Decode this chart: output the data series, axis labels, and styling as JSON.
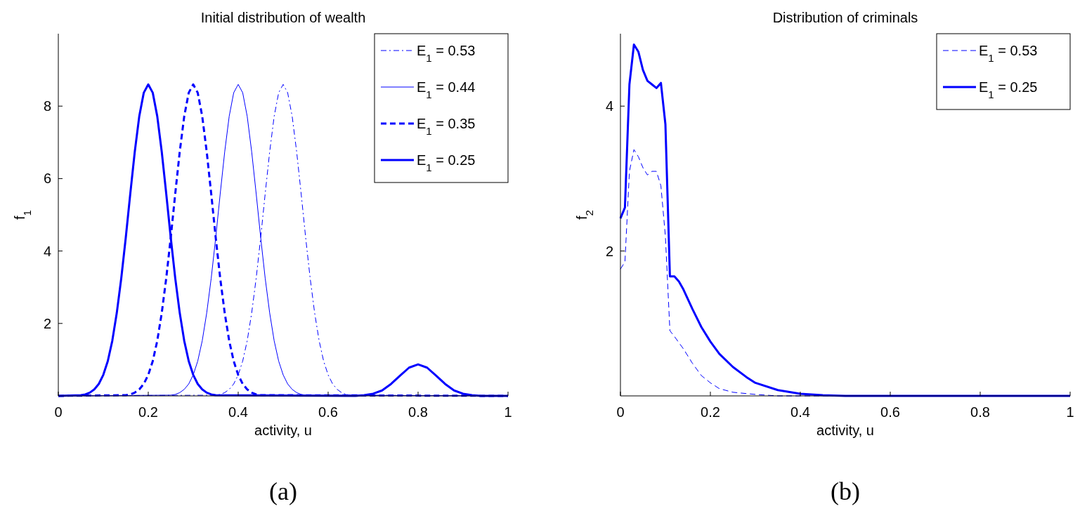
{
  "chart_data": [
    {
      "type": "line",
      "title": "Initial distribution of wealth",
      "xlabel": "activity, u",
      "ylabel": "f$_{1}$",
      "xlim": [
        0,
        1
      ],
      "ylim": [
        0,
        10
      ],
      "xticks": [
        0,
        0.2,
        0.4,
        0.6,
        0.8,
        1
      ],
      "yticks": [
        2,
        4,
        6,
        8
      ],
      "legend": "top right",
      "annotations": [
        "(a)"
      ],
      "series": [
        {
          "name": "E$_{1}$ = 0.53",
          "color": "#0000ff",
          "line_style": "dashdot",
          "x": [
            0,
            0.35,
            0.36,
            0.37,
            0.38,
            0.39,
            0.4,
            0.41,
            0.42,
            0.43,
            0.44,
            0.45,
            0.46,
            0.47,
            0.48,
            0.49,
            0.5,
            0.51,
            0.52,
            0.53,
            0.54,
            0.55,
            0.56,
            0.57,
            0.58,
            0.59,
            0.6,
            0.61,
            0.62,
            0.63,
            0.64,
            0.65,
            1
          ],
          "values": [
            0,
            0.02,
            0.04,
            0.09,
            0.18,
            0.33,
            0.58,
            0.96,
            1.52,
            2.29,
            3.25,
            4.37,
            5.58,
            6.74,
            7.72,
            8.37,
            8.6,
            8.37,
            7.72,
            6.74,
            5.58,
            4.37,
            3.25,
            2.29,
            1.52,
            0.96,
            0.58,
            0.33,
            0.18,
            0.09,
            0.04,
            0.02,
            0
          ]
        },
        {
          "name": "E$_{1}$ = 0.44",
          "color": "#0000ff",
          "line_style": "solid",
          "x": [
            0,
            0.25,
            0.26,
            0.27,
            0.28,
            0.29,
            0.3,
            0.31,
            0.32,
            0.33,
            0.34,
            0.35,
            0.36,
            0.37,
            0.38,
            0.39,
            0.4,
            0.41,
            0.42,
            0.43,
            0.44,
            0.45,
            0.46,
            0.47,
            0.48,
            0.49,
            0.5,
            0.51,
            0.52,
            0.53,
            0.54,
            0.55,
            1
          ],
          "values": [
            0,
            0.02,
            0.04,
            0.09,
            0.18,
            0.33,
            0.58,
            0.96,
            1.52,
            2.29,
            3.25,
            4.37,
            5.58,
            6.74,
            7.72,
            8.37,
            8.6,
            8.37,
            7.72,
            6.74,
            5.58,
            4.37,
            3.25,
            2.29,
            1.52,
            0.96,
            0.58,
            0.33,
            0.18,
            0.09,
            0.04,
            0.02,
            0
          ]
        },
        {
          "name": "E$_{1}$ = 0.35",
          "color": "#0000ff",
          "line_style": "dashed",
          "x": [
            0,
            0.15,
            0.16,
            0.17,
            0.18,
            0.19,
            0.2,
            0.21,
            0.22,
            0.23,
            0.24,
            0.25,
            0.26,
            0.27,
            0.28,
            0.29,
            0.3,
            0.31,
            0.32,
            0.33,
            0.34,
            0.35,
            0.36,
            0.37,
            0.38,
            0.39,
            0.4,
            0.41,
            0.42,
            0.43,
            0.44,
            0.45,
            1
          ],
          "values": [
            0,
            0.02,
            0.04,
            0.09,
            0.18,
            0.33,
            0.58,
            0.96,
            1.52,
            2.29,
            3.25,
            4.37,
            5.58,
            6.74,
            7.72,
            8.37,
            8.6,
            8.37,
            7.72,
            6.74,
            5.58,
            4.37,
            3.25,
            2.29,
            1.52,
            0.96,
            0.58,
            0.33,
            0.18,
            0.09,
            0.04,
            0.02,
            0
          ]
        },
        {
          "name": "E$_{1}$ = 0.25",
          "color": "#0000ff",
          "line_style": "solid",
          "x": [
            0,
            0.05,
            0.06,
            0.07,
            0.08,
            0.09,
            0.1,
            0.11,
            0.12,
            0.13,
            0.14,
            0.15,
            0.16,
            0.17,
            0.18,
            0.19,
            0.2,
            0.21,
            0.22,
            0.23,
            0.24,
            0.25,
            0.26,
            0.27,
            0.28,
            0.29,
            0.3,
            0.31,
            0.32,
            0.33,
            0.34,
            0.35,
            0.66,
            0.68,
            0.7,
            0.72,
            0.74,
            0.76,
            0.78,
            0.8,
            0.82,
            0.84,
            0.86,
            0.88,
            0.9,
            0.92,
            0.94,
            1
          ],
          "values": [
            0,
            0.02,
            0.04,
            0.09,
            0.18,
            0.33,
            0.58,
            0.96,
            1.52,
            2.29,
            3.25,
            4.37,
            5.58,
            6.74,
            7.72,
            8.37,
            8.6,
            8.37,
            7.72,
            6.74,
            5.58,
            4.37,
            3.25,
            2.29,
            1.52,
            0.96,
            0.58,
            0.33,
            0.18,
            0.09,
            0.04,
            0.02,
            0,
            0.02,
            0.06,
            0.15,
            0.33,
            0.56,
            0.78,
            0.87,
            0.78,
            0.56,
            0.33,
            0.15,
            0.06,
            0.02,
            0,
            0
          ]
        }
      ]
    },
    {
      "type": "line",
      "title": "Distribution of criminals",
      "xlabel": "activity, u",
      "ylabel": "f$_{2}$",
      "xlim": [
        0,
        1
      ],
      "ylim": [
        0,
        5
      ],
      "xticks": [
        0,
        0.2,
        0.4,
        0.6,
        0.8,
        1
      ],
      "yticks": [
        2,
        4
      ],
      "legend": "top right",
      "annotations": [
        "(b)"
      ],
      "series": [
        {
          "name": "E$_{1}$ = 0.53",
          "color": "#0000ff",
          "line_style": "dashed",
          "x": [
            0,
            0.01,
            0.02,
            0.03,
            0.04,
            0.05,
            0.06,
            0.07,
            0.08,
            0.09,
            0.1,
            0.11,
            0.12,
            0.14,
            0.16,
            0.18,
            0.2,
            0.22,
            0.25,
            0.3,
            0.35,
            1
          ],
          "values": [
            1.75,
            1.85,
            3.1,
            3.4,
            3.3,
            3.15,
            3.05,
            3.1,
            3.1,
            2.9,
            2.2,
            0.9,
            0.82,
            0.65,
            0.45,
            0.28,
            0.18,
            0.1,
            0.05,
            0.02,
            0,
            0
          ]
        },
        {
          "name": "E$_{1}$ = 0.25",
          "color": "#0000ff",
          "line_style": "solid",
          "x": [
            0,
            0.01,
            0.02,
            0.03,
            0.04,
            0.05,
            0.06,
            0.07,
            0.08,
            0.09,
            0.1,
            0.11,
            0.12,
            0.13,
            0.14,
            0.16,
            0.18,
            0.2,
            0.22,
            0.25,
            0.28,
            0.3,
            0.35,
            0.4,
            0.45,
            0.5,
            1
          ],
          "values": [
            2.45,
            2.6,
            4.3,
            4.85,
            4.75,
            4.5,
            4.35,
            4.3,
            4.25,
            4.32,
            3.75,
            1.65,
            1.65,
            1.58,
            1.47,
            1.2,
            0.95,
            0.75,
            0.58,
            0.4,
            0.26,
            0.18,
            0.08,
            0.03,
            0.01,
            0,
            0
          ]
        }
      ]
    }
  ]
}
